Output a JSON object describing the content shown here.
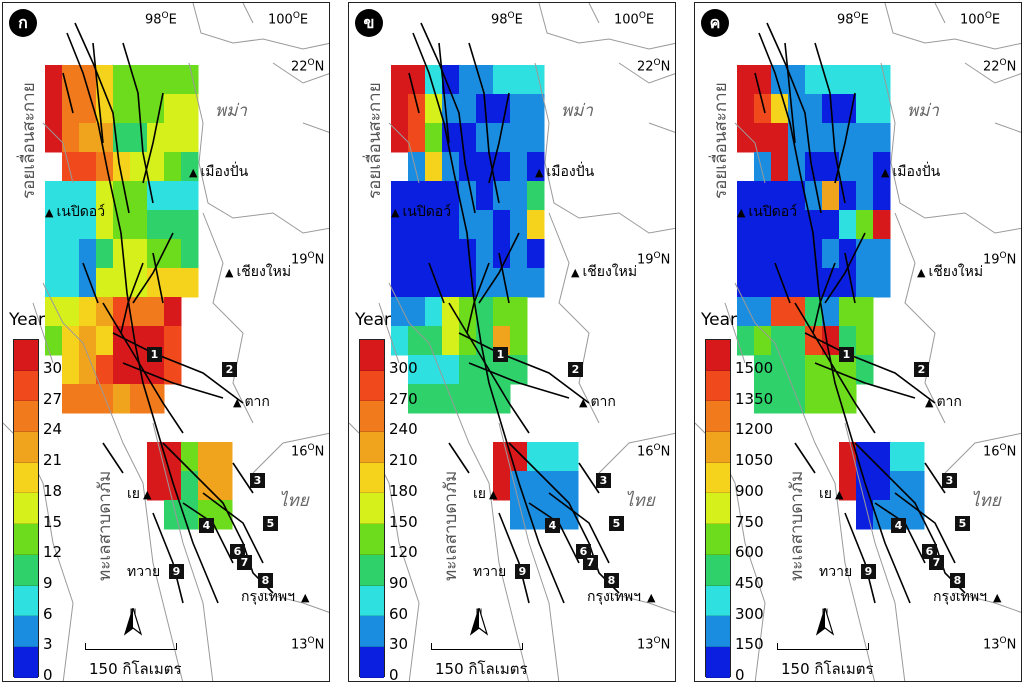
{
  "panels": [
    {
      "letter": "ก",
      "legend_title": "Year",
      "legend_ticks": [
        "30",
        "27",
        "24",
        "21",
        "18",
        "15",
        "12",
        "9",
        "6",
        "3",
        "0"
      ]
    },
    {
      "letter": "ข",
      "legend_title": "Year",
      "legend_ticks": [
        "300",
        "270",
        "240",
        "210",
        "180",
        "150",
        "120",
        "90",
        "60",
        "30",
        "0"
      ]
    },
    {
      "letter": "ค",
      "legend_title": "Year",
      "legend_ticks": [
        "1500",
        "1350",
        "1200",
        "1050",
        "900",
        "750",
        "600",
        "450",
        "300",
        "150",
        "0"
      ]
    }
  ],
  "map_labels": {
    "lon_98": "98",
    "lon_100": "100",
    "lon_suffix": "E",
    "lat_22": "22",
    "lat_19": "19",
    "lat_16": "16",
    "lat_13": "13",
    "lat_suffix": "N",
    "deg": "O",
    "country_myanmar": "พม่า",
    "country_thailand": "ไทย",
    "fault_sagaing": "รอยเลื่อนสะกาย",
    "fault_three_pagodas": "ทะเลสาบดาภัม",
    "city_muang_pan": "เมืองปั่น",
    "city_naypyidaw": "เนปิดอว์",
    "city_chiang_mai": "เชียงใหม่",
    "city_tak": "ตาก",
    "city_ye": "เย",
    "city_dawei": "ทวาย",
    "city_bangkok": "กรุงเทพฯ",
    "scale": "150 กิโลเมตร",
    "north": "N",
    "badges": [
      "1",
      "2",
      "3",
      "4",
      "5",
      "6",
      "7",
      "8",
      "9"
    ]
  },
  "colors": {
    "scale": [
      "#d7191c",
      "#f04a1c",
      "#f07a1c",
      "#f0a31c",
      "#f5d31c",
      "#d6f01c",
      "#6ddc1c",
      "#2fd16b",
      "#2fe0e0",
      "#1a8de0",
      "#0b1fe0"
    ]
  },
  "grids": [
    [
      [
        0,
        2,
        2,
        4,
        6,
        6,
        6,
        6,
        6,
        -1,
        -1
      ],
      [
        0,
        2,
        2,
        4,
        6,
        6,
        6,
        5,
        5,
        -1,
        -1
      ],
      [
        0,
        2,
        3,
        3,
        7,
        7,
        5,
        5,
        5,
        -1,
        -1
      ],
      [
        -1,
        1,
        1,
        2,
        4,
        5,
        5,
        6,
        7,
        -1,
        -1
      ],
      [
        8,
        8,
        8,
        5,
        6,
        6,
        8,
        8,
        8,
        -1,
        -1
      ],
      [
        8,
        8,
        8,
        5,
        6,
        6,
        7,
        7,
        7,
        -1,
        -1
      ],
      [
        8,
        8,
        9,
        7,
        5,
        5,
        6,
        6,
        7,
        -1,
        -1
      ],
      [
        8,
        8,
        9,
        5,
        5,
        5,
        4,
        4,
        4,
        -1,
        -1
      ],
      [
        5,
        5,
        4,
        3,
        1,
        2,
        2,
        0,
        -1,
        -1,
        -1
      ],
      [
        6,
        4,
        3,
        4,
        0,
        0,
        0,
        1,
        -1,
        -1,
        -1
      ],
      [
        -1,
        4,
        3,
        1,
        0,
        0,
        0,
        1,
        -1,
        -1,
        -1
      ],
      [
        -1,
        2,
        2,
        2,
        3,
        2,
        2,
        -1,
        -1,
        -1,
        -1
      ],
      [
        -1,
        -1,
        -1,
        -1,
        -1,
        -1,
        -1,
        -1,
        -1,
        -1,
        -1
      ],
      [
        -1,
        -1,
        -1,
        -1,
        -1,
        -1,
        0,
        0,
        6,
        3,
        3
      ],
      [
        -1,
        -1,
        -1,
        -1,
        -1,
        -1,
        0,
        0,
        7,
        3,
        3
      ],
      [
        -1,
        -1,
        -1,
        -1,
        -1,
        -1,
        -1,
        7,
        7,
        6,
        6
      ]
    ],
    [
      [
        0,
        0,
        8,
        10,
        9,
        9,
        8,
        8,
        8,
        -1,
        -1
      ],
      [
        0,
        1,
        5,
        9,
        9,
        10,
        10,
        9,
        9,
        -1,
        -1
      ],
      [
        0,
        1,
        6,
        10,
        10,
        9,
        9,
        9,
        9,
        -1,
        -1
      ],
      [
        -1,
        9,
        4,
        9,
        10,
        10,
        10,
        9,
        10,
        -1,
        -1
      ],
      [
        10,
        10,
        10,
        10,
        9,
        10,
        9,
        9,
        7,
        -1,
        -1
      ],
      [
        10,
        10,
        10,
        10,
        9,
        9,
        10,
        9,
        4,
        -1,
        -1
      ],
      [
        10,
        10,
        10,
        10,
        10,
        9,
        10,
        9,
        10,
        -1,
        -1
      ],
      [
        10,
        10,
        10,
        10,
        10,
        9,
        9,
        9,
        9,
        -1,
        -1
      ],
      [
        9,
        9,
        8,
        5,
        6,
        7,
        6,
        6,
        -1,
        -1,
        -1
      ],
      [
        8,
        7,
        7,
        5,
        6,
        7,
        3,
        6,
        -1,
        -1,
        -1
      ],
      [
        -1,
        8,
        8,
        8,
        7,
        7,
        7,
        7,
        -1,
        -1,
        -1
      ],
      [
        -1,
        7,
        7,
        7,
        7,
        7,
        7,
        -1,
        -1,
        -1,
        -1
      ],
      [
        -1,
        -1,
        -1,
        -1,
        -1,
        -1,
        -1,
        -1,
        -1,
        -1,
        -1
      ],
      [
        -1,
        -1,
        -1,
        -1,
        -1,
        -1,
        0,
        0,
        8,
        8,
        8
      ],
      [
        -1,
        -1,
        -1,
        -1,
        -1,
        -1,
        0,
        9,
        9,
        9,
        9
      ],
      [
        -1,
        -1,
        -1,
        -1,
        -1,
        -1,
        -1,
        9,
        9,
        9,
        9
      ]
    ],
    [
      [
        0,
        0,
        9,
        9,
        8,
        8,
        8,
        8,
        8,
        -1,
        -1
      ],
      [
        0,
        1,
        4,
        9,
        9,
        10,
        10,
        8,
        8,
        -1,
        -1
      ],
      [
        0,
        0,
        0,
        9,
        9,
        9,
        9,
        9,
        9,
        -1,
        -1
      ],
      [
        -1,
        9,
        0,
        9,
        10,
        10,
        9,
        9,
        10,
        -1,
        -1
      ],
      [
        10,
        10,
        10,
        10,
        9,
        3,
        10,
        9,
        10,
        -1,
        -1
      ],
      [
        10,
        10,
        10,
        10,
        10,
        10,
        8,
        6,
        0,
        -1,
        -1
      ],
      [
        10,
        10,
        10,
        10,
        10,
        9,
        10,
        9,
        9,
        -1,
        -1
      ],
      [
        10,
        10,
        10,
        10,
        10,
        10,
        10,
        9,
        9,
        -1,
        -1
      ],
      [
        9,
        9,
        1,
        1,
        7,
        9,
        6,
        6,
        -1,
        -1,
        -1
      ],
      [
        7,
        6,
        7,
        7,
        1,
        0,
        7,
        6,
        -1,
        -1,
        -1
      ],
      [
        -1,
        7,
        7,
        7,
        6,
        6,
        6,
        7,
        -1,
        -1,
        -1
      ],
      [
        -1,
        7,
        7,
        7,
        6,
        6,
        6,
        -1,
        -1,
        -1,
        -1
      ],
      [
        -1,
        -1,
        -1,
        -1,
        -1,
        -1,
        -1,
        -1,
        -1,
        -1,
        -1
      ],
      [
        -1,
        -1,
        -1,
        -1,
        -1,
        -1,
        0,
        10,
        10,
        8,
        8
      ],
      [
        -1,
        -1,
        -1,
        -1,
        -1,
        -1,
        0,
        10,
        10,
        9,
        9
      ],
      [
        -1,
        -1,
        -1,
        -1,
        -1,
        -1,
        -1,
        10,
        9,
        9,
        9
      ]
    ]
  ]
}
